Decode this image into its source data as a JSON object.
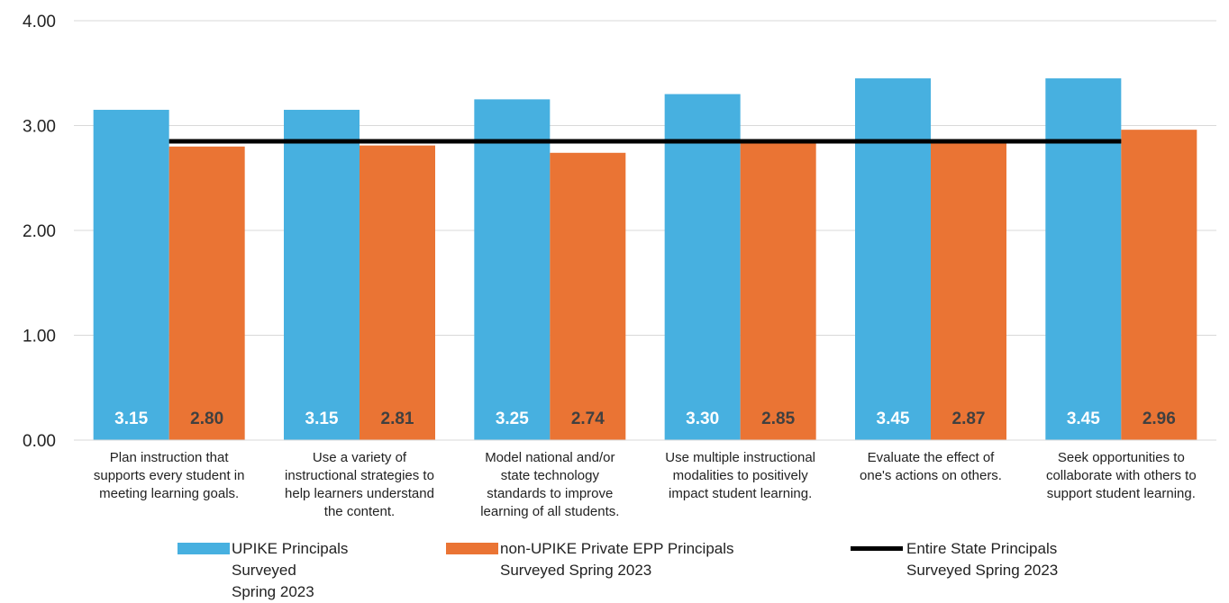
{
  "chart_data": {
    "type": "bar",
    "categories": [
      "Plan instruction that supports every student in meeting learning goals.",
      "Use a variety of instructional strategies to help learners understand the content.",
      "Model national and/or state technology standards to improve learning of all students.",
      "Use multiple instructional modalities to positively impact student learning.",
      "Evaluate the effect of one's actions on others.",
      "Seek opportunities to collaborate with others to support student learning."
    ],
    "series": [
      {
        "name": "UPIKE Principals Surveyed Spring 2023",
        "type": "bar",
        "color": "#47B0E0",
        "values": [
          3.15,
          3.15,
          3.25,
          3.3,
          3.45,
          3.45
        ],
        "data_labels": [
          "3.15",
          "3.15",
          "3.25",
          "3.30",
          "3.45",
          "3.45"
        ]
      },
      {
        "name": "non-UPIKE Private EPP Principals Surveyed Spring 2023",
        "type": "bar",
        "color": "#EA7434",
        "values": [
          2.8,
          2.81,
          2.74,
          2.85,
          2.87,
          2.96
        ],
        "data_labels": [
          "2.80",
          "2.81",
          "2.74",
          "2.85",
          "2.87",
          "2.96"
        ]
      },
      {
        "name": "Entire State Principals Surveyed Spring 2023",
        "type": "line",
        "color": "#000000",
        "values": [
          2.85,
          2.85,
          2.85,
          2.85,
          2.85,
          2.85
        ]
      }
    ],
    "yticks": [
      "0.00",
      "1.00",
      "2.00",
      "3.00",
      "4.00"
    ],
    "ylim": [
      0,
      4
    ],
    "grid": true,
    "legend_position": "bottom",
    "title": "",
    "xlabel": "",
    "ylabel": ""
  },
  "category_lines": [
    [
      "Plan instruction that",
      "supports every student in",
      "meeting learning goals."
    ],
    [
      "Use a variety of",
      "instructional strategies to",
      "help learners understand",
      "the content."
    ],
    [
      "Model national and/or",
      "state technology",
      "standards to improve",
      "learning of all students."
    ],
    [
      "Use multiple instructional",
      "modalities to positively",
      "impact student learning."
    ],
    [
      "Evaluate the effect of",
      "one's actions on others."
    ],
    [
      "Seek opportunities to",
      "collaborate with others to",
      "support student learning."
    ]
  ],
  "legend": [
    {
      "lines": [
        "UPIKE Principals",
        "Surveyed",
        "Spring 2023"
      ],
      "color": "#47B0E0",
      "kind": "bar"
    },
    {
      "lines": [
        "non-UPIKE Private EPP Principals",
        "Surveyed Spring 2023"
      ],
      "color": "#EA7434",
      "kind": "bar"
    },
    {
      "lines": [
        "Entire State Principals",
        "Surveyed Spring 2023"
      ],
      "color": "#000000",
      "kind": "line"
    }
  ]
}
